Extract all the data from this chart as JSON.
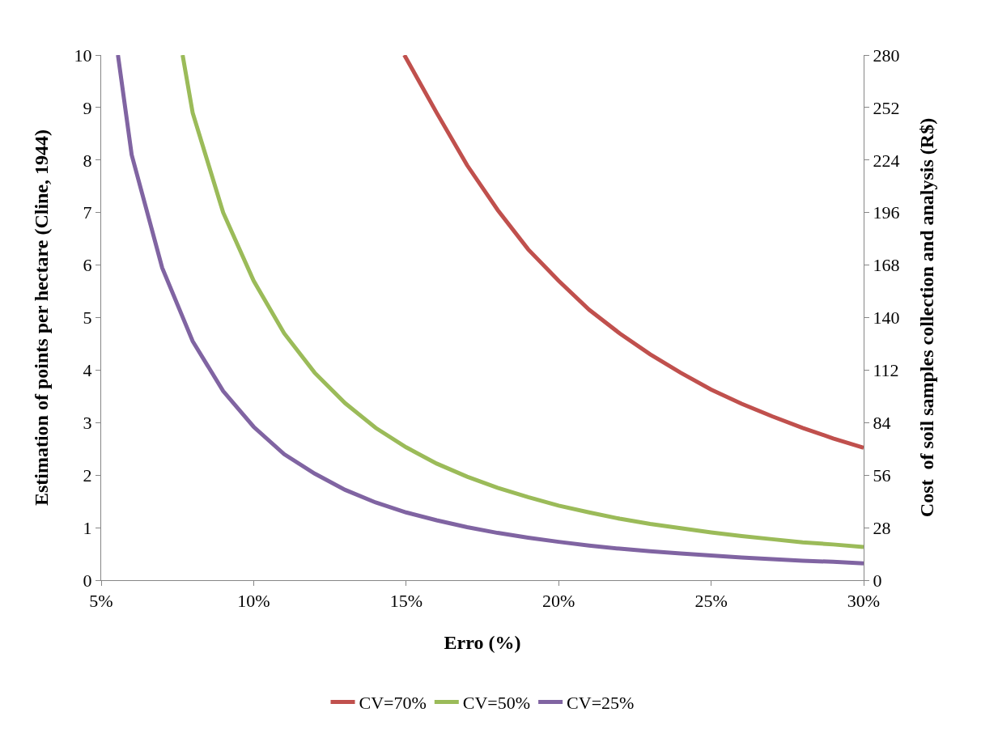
{
  "chart_data": {
    "type": "line",
    "xlabel": "Erro (%)",
    "ylabel": "Estimation of points per hectare (Cline, 1944)",
    "y2label": "Cost  of soil samples collection and analysis (R$)",
    "xlim": [
      5,
      30
    ],
    "xticks": [
      {
        "value": 5,
        "label": "5%"
      },
      {
        "value": 10,
        "label": "10%"
      },
      {
        "value": 15,
        "label": "15%"
      },
      {
        "value": 20,
        "label": "20%"
      },
      {
        "value": 25,
        "label": "25%"
      },
      {
        "value": 30,
        "label": "30%"
      }
    ],
    "ylim": [
      0,
      10
    ],
    "yticks": [
      0,
      1,
      2,
      3,
      4,
      5,
      6,
      7,
      8,
      9,
      10
    ],
    "y2lim": [
      0,
      280
    ],
    "y2ticks": [
      0,
      28,
      56,
      84,
      112,
      140,
      168,
      196,
      224,
      252,
      280
    ],
    "legend": "bottom",
    "marker": "none",
    "line_style": "solid",
    "series": [
      {
        "name": "CV=70%",
        "color": "#c0504d",
        "x": [
          14.94,
          16,
          17,
          18,
          19,
          20,
          21,
          22,
          23,
          24,
          25,
          26,
          27,
          28,
          29,
          30
        ],
        "values": [
          10,
          8.9,
          7.9,
          7.05,
          6.3,
          5.7,
          5.15,
          4.7,
          4.3,
          3.95,
          3.63,
          3.36,
          3.12,
          2.9,
          2.7,
          2.52
        ]
      },
      {
        "name": "CV=50%",
        "color": "#9bbb59",
        "x": [
          7.67,
          8,
          9,
          10,
          11,
          12,
          13,
          14,
          15,
          16,
          17,
          18,
          19,
          20,
          21,
          22,
          23,
          24,
          25,
          26,
          27,
          28,
          29,
          30
        ],
        "values": [
          10,
          8.9,
          7.0,
          5.7,
          4.7,
          3.95,
          3.37,
          2.9,
          2.53,
          2.22,
          1.97,
          1.76,
          1.58,
          1.42,
          1.29,
          1.17,
          1.07,
          0.99,
          0.91,
          0.84,
          0.78,
          0.72,
          0.68,
          0.63
        ]
      },
      {
        "name": "CV=25%",
        "color": "#8064a2",
        "x": [
          5.55,
          6,
          7,
          8,
          9,
          10,
          11,
          12,
          13,
          14,
          15,
          16,
          17,
          18,
          19,
          20,
          21,
          22,
          23,
          24,
          25,
          26,
          27,
          28,
          29,
          30
        ],
        "values": [
          10,
          8.1,
          5.95,
          4.55,
          3.6,
          2.92,
          2.4,
          2.03,
          1.72,
          1.48,
          1.29,
          1.14,
          1.01,
          0.9,
          0.81,
          0.73,
          0.66,
          0.6,
          0.55,
          0.51,
          0.47,
          0.43,
          0.4,
          0.37,
          0.35,
          0.32
        ]
      }
    ]
  }
}
